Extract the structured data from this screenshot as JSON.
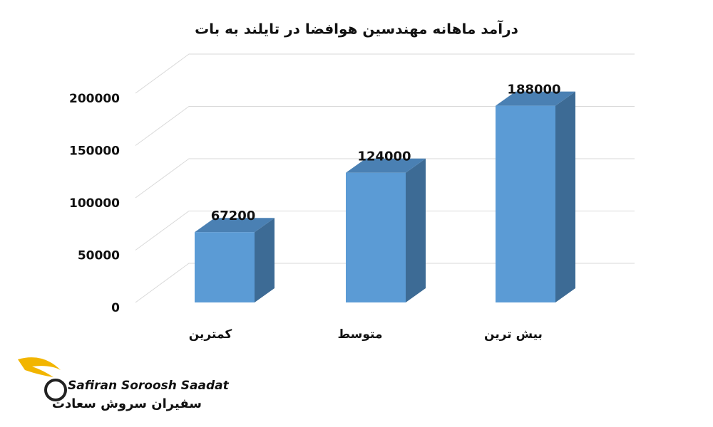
{
  "chart_data": {
    "type": "bar3d",
    "title": "درآمد ماهانه مهندسین هوافضا در تایلند به بات",
    "categories": [
      "کمترین",
      "متوسط",
      "بیش ترین"
    ],
    "values": [
      67200,
      124000,
      188000
    ],
    "color": "#5b9bd5",
    "ylim": [
      0,
      200000
    ],
    "yticks": [
      0,
      50000,
      100000,
      150000,
      200000
    ],
    "grid": true
  },
  "logo": {
    "name": "Safiran Soroosh Saadat",
    "name_fa": "سفیران سروش سعادت"
  }
}
